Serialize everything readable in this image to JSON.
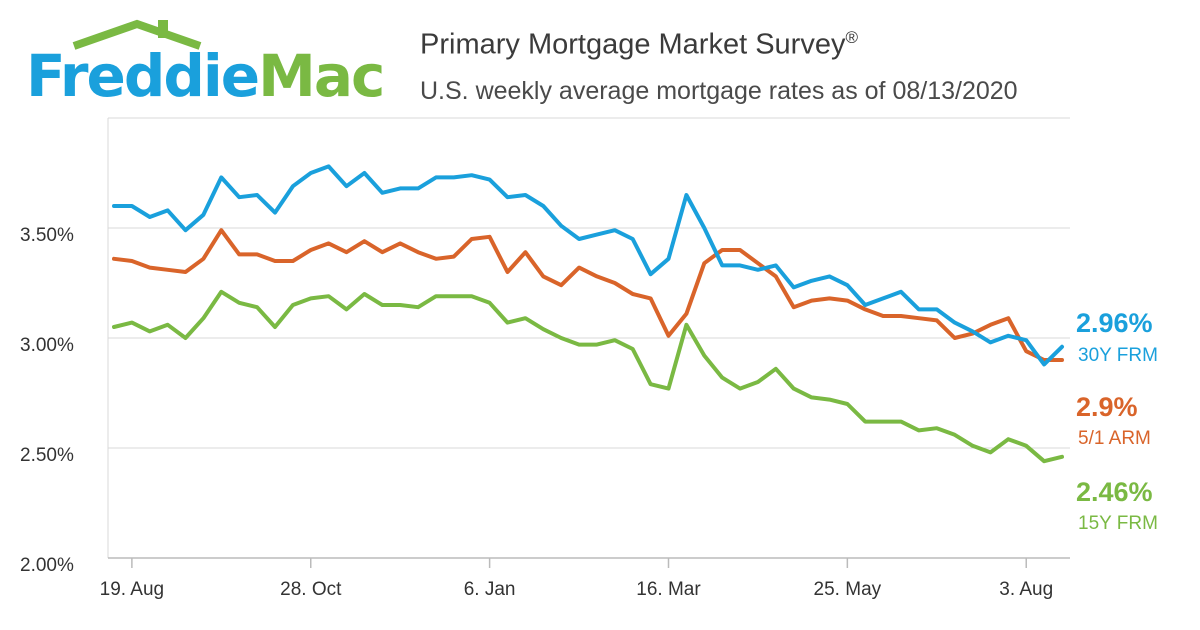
{
  "logo": {
    "word1": "Freddie",
    "word2": "Mac",
    "alt": "Freddie Mac"
  },
  "header": {
    "title": "Primary Mortgage Market Survey",
    "title_mark": "®",
    "subtitle": "U.S. weekly average mortgage rates as of 08/13/2020"
  },
  "colors": {
    "frm30": "#1aa0dc",
    "arm51": "#d9642a",
    "frm15": "#7ab943",
    "grid": "#d9d9d9",
    "axis": "#bbbbbb"
  },
  "chart_data": {
    "type": "line",
    "title": "Primary Mortgage Market Survey",
    "subtitle": "U.S. weekly average mortgage rates as of 08/13/2020",
    "xlabel": "",
    "ylabel": "",
    "x_tick_labels": [
      "19. Aug",
      "28. Oct",
      "6. Jan",
      "16. Mar",
      "25. May",
      "3. Aug"
    ],
    "y_tick_labels": [
      "2.00%",
      "2.50%",
      "3.00%",
      "3.50%"
    ],
    "ylim": [
      2.0,
      4.0
    ],
    "grid": "horizontal",
    "x_start": "2019-08-08",
    "x_end": "2020-08-13",
    "frequency": "weekly",
    "series": [
      {
        "name": "30Y FRM",
        "end_value": "2.96%",
        "values": [
          3.6,
          3.6,
          3.55,
          3.58,
          3.49,
          3.56,
          3.73,
          3.64,
          3.65,
          3.57,
          3.69,
          3.75,
          3.78,
          3.69,
          3.75,
          3.66,
          3.68,
          3.68,
          3.73,
          3.73,
          3.74,
          3.72,
          3.64,
          3.65,
          3.6,
          3.51,
          3.45,
          3.47,
          3.49,
          3.45,
          3.29,
          3.36,
          3.65,
          3.5,
          3.33,
          3.33,
          3.31,
          3.33,
          3.23,
          3.26,
          3.28,
          3.24,
          3.15,
          3.18,
          3.21,
          3.13,
          3.13,
          3.07,
          3.03,
          2.98,
          3.01,
          2.99,
          2.88,
          2.96
        ]
      },
      {
        "name": "5/1 ARM",
        "end_value": "2.9%",
        "values": [
          3.36,
          3.35,
          3.32,
          3.31,
          3.3,
          3.36,
          3.49,
          3.38,
          3.38,
          3.35,
          3.35,
          3.4,
          3.43,
          3.39,
          3.44,
          3.39,
          3.43,
          3.39,
          3.36,
          3.37,
          3.45,
          3.46,
          3.3,
          3.39,
          3.28,
          3.24,
          3.32,
          3.28,
          3.25,
          3.2,
          3.18,
          3.01,
          3.11,
          3.34,
          3.4,
          3.4,
          3.34,
          3.28,
          3.14,
          3.17,
          3.18,
          3.17,
          3.13,
          3.1,
          3.1,
          3.09,
          3.08,
          3.0,
          3.02,
          3.06,
          3.09,
          2.94,
          2.9,
          2.9
        ]
      },
      {
        "name": "15Y FRM",
        "end_value": "2.46%",
        "values": [
          3.05,
          3.07,
          3.03,
          3.06,
          3.0,
          3.09,
          3.21,
          3.16,
          3.14,
          3.05,
          3.15,
          3.18,
          3.19,
          3.13,
          3.2,
          3.15,
          3.15,
          3.14,
          3.19,
          3.19,
          3.19,
          3.16,
          3.07,
          3.09,
          3.04,
          3.0,
          2.97,
          2.97,
          2.99,
          2.95,
          2.79,
          2.77,
          3.06,
          2.92,
          2.82,
          2.77,
          2.8,
          2.86,
          2.77,
          2.73,
          2.72,
          2.7,
          2.62,
          2.62,
          2.62,
          2.58,
          2.59,
          2.56,
          2.51,
          2.48,
          2.54,
          2.51,
          2.44,
          2.46
        ]
      }
    ]
  }
}
